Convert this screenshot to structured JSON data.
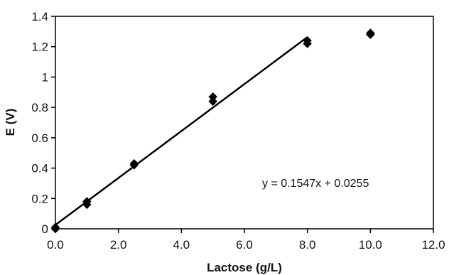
{
  "chart_data": {
    "type": "scatter",
    "title": "",
    "xlabel": "Lactose (g/L)",
    "ylabel": "E (V)",
    "xlim": [
      0,
      12
    ],
    "ylim": [
      0,
      1.4
    ],
    "x_ticks": [
      "0.0",
      "2.0",
      "4.0",
      "6.0",
      "8.0",
      "10.0",
      "12.0"
    ],
    "y_ticks": [
      "0",
      "0.2",
      "0.4",
      "0.6",
      "0.8",
      "1",
      "1.2",
      "1.4"
    ],
    "grid": false,
    "legend": "none",
    "series": [
      {
        "marker": "diamond",
        "color": "#000000",
        "points": [
          {
            "x": 0.0,
            "y": 0.0
          },
          {
            "x": 0.0,
            "y": 0.01
          },
          {
            "x": 1.0,
            "y": 0.16
          },
          {
            "x": 1.0,
            "y": 0.18
          },
          {
            "x": 2.5,
            "y": 0.42
          },
          {
            "x": 2.5,
            "y": 0.43
          },
          {
            "x": 5.0,
            "y": 0.84
          },
          {
            "x": 5.0,
            "y": 0.87
          },
          {
            "x": 8.0,
            "y": 1.22
          },
          {
            "x": 8.0,
            "y": 1.24
          },
          {
            "x": 10.0,
            "y": 1.28
          },
          {
            "x": 10.0,
            "y": 1.29
          }
        ]
      }
    ],
    "trendline": {
      "slope": 0.1547,
      "intercept": 0.0255,
      "x_range": [
        0,
        8
      ],
      "color": "#000000"
    },
    "annotation": "y = 0.1547x + 0.0255"
  }
}
